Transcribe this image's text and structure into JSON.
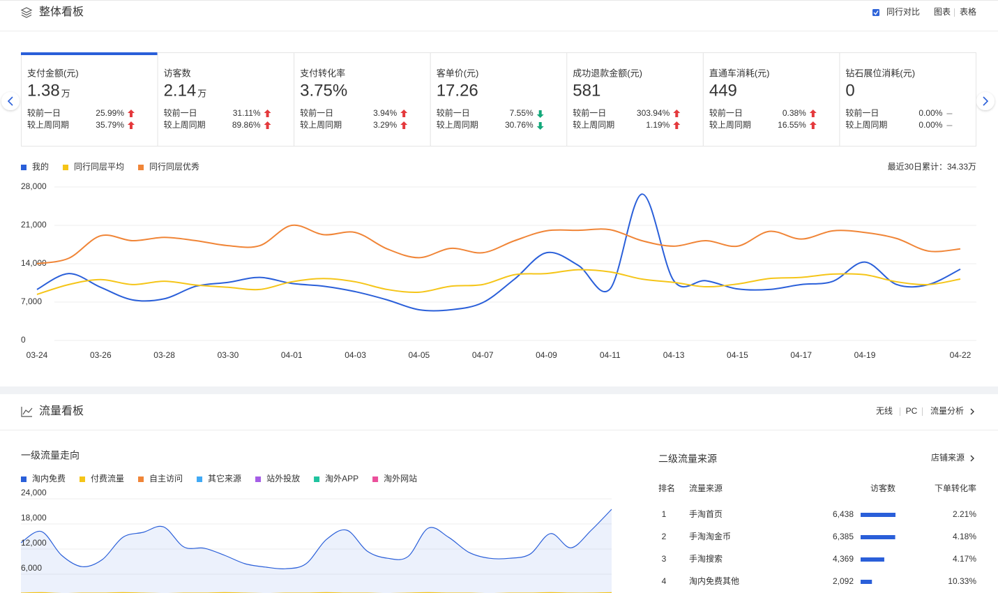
{
  "overview": {
    "title": "整体看板",
    "compare_toggle": {
      "label": "同行对比",
      "checked": true
    },
    "views": [
      "图表",
      "表格"
    ],
    "metrics": [
      {
        "title": "支付金额(元)",
        "value": "1.38",
        "unit": "万",
        "selected": true,
        "compare": [
          {
            "label": "较前一日",
            "value": "25.99%",
            "trend": "up",
            "color": "#666666"
          },
          {
            "label": "较上周同期",
            "value": "35.79%",
            "trend": "up",
            "color": "#e4393c"
          }
        ]
      },
      {
        "title": "访客数",
        "value": "2.14",
        "unit": "万",
        "selected": false,
        "compare": [
          {
            "label": "较前一日",
            "value": "31.11%",
            "trend": "up",
            "color": "#e4393c"
          },
          {
            "label": "较上周同期",
            "value": "89.86%",
            "trend": "up",
            "color": "#e4393c"
          }
        ]
      },
      {
        "title": "支付转化率",
        "value": "3.75%",
        "selected": false,
        "compare": [
          {
            "label": "较前一日",
            "value": "3.94%",
            "trend": "up",
            "color": "#666666"
          },
          {
            "label": "较上周同期",
            "value": "3.29%",
            "trend": "up",
            "color": "#666666"
          }
        ]
      },
      {
        "title": "客单价(元)",
        "value": "17.26",
        "selected": false,
        "compare": [
          {
            "label": "较前一日",
            "value": "7.55%",
            "trend": "down",
            "color": "#666666"
          },
          {
            "label": "较上周同期",
            "value": "30.76%",
            "trend": "down",
            "color": "#13a87a"
          }
        ]
      },
      {
        "title": "成功退款金额(元)",
        "value": "581",
        "selected": false,
        "compare": [
          {
            "label": "较前一日",
            "value": "303.94%",
            "trend": "up",
            "color": "#e4393c"
          },
          {
            "label": "较上周同期",
            "value": "1.19%",
            "trend": "up",
            "color": "#666666"
          }
        ]
      },
      {
        "title": "直通车消耗(元)",
        "value": "449",
        "selected": false,
        "compare": [
          {
            "label": "较前一日",
            "value": "0.38%",
            "trend": "up",
            "color": "#666666"
          },
          {
            "label": "较上周同期",
            "value": "16.55%",
            "trend": "up",
            "color": "#666666"
          }
        ]
      },
      {
        "title": "钻石展位消耗(元)",
        "value": "0",
        "selected": false,
        "compare": [
          {
            "label": "较前一日",
            "value": "0.00%",
            "trend": "flat",
            "color": "#666666"
          },
          {
            "label": "较上周同期",
            "value": "0.00%",
            "trend": "flat",
            "color": "#666666"
          }
        ]
      }
    ],
    "total": "最近30日累计：34.33万",
    "chart": {
      "type": "line",
      "categories": [
        "03-24",
        null,
        "03-26",
        null,
        "03-28",
        null,
        "03-30",
        null,
        "04-01",
        null,
        "04-03",
        null,
        "04-05",
        null,
        "04-07",
        null,
        "04-09",
        null,
        "04-11",
        null,
        "04-13",
        null,
        "04-15",
        null,
        "04-17",
        null,
        "04-19",
        null,
        null,
        "04-22"
      ],
      "ylim": [
        0,
        28000
      ],
      "yticks": [
        0,
        {
          "value": 7000,
          "label": "7,000"
        },
        {
          "value": 14000,
          "label": "14,000"
        },
        {
          "value": 21000,
          "label": "21,000"
        },
        {
          "value": 28000,
          "label": "28,000"
        }
      ],
      "grid": true,
      "series": [
        {
          "name": "我的",
          "color": "#2a5fd9",
          "values": [
            9300,
            12200,
            9700,
            7400,
            7600,
            9900,
            10600,
            11500,
            10400,
            9900,
            8900,
            7400,
            5600,
            5600,
            6900,
            11200,
            16000,
            13700,
            9400,
            26700,
            10900,
            10900,
            9400,
            9300,
            10200,
            10800,
            14300,
            10200,
            10200,
            13000
          ]
        },
        {
          "name": "同行同层平均",
          "color": "#f5c518",
          "values": [
            8400,
            10200,
            11100,
            10200,
            10800,
            10100,
            9700,
            9300,
            10700,
            11300,
            10700,
            9300,
            8800,
            9900,
            10200,
            12000,
            12200,
            12900,
            12500,
            11200,
            10600,
            9800,
            10300,
            11300,
            11500,
            12100,
            12000,
            10700,
            10200,
            11200
          ]
        },
        {
          "name": "同行同层优秀",
          "color": "#f08537",
          "values": [
            14000,
            15000,
            19100,
            18200,
            18800,
            18200,
            17300,
            17300,
            21000,
            19300,
            19700,
            16700,
            15100,
            16800,
            16000,
            18200,
            20000,
            20100,
            20200,
            18200,
            17200,
            18200,
            17200,
            19900,
            18500,
            20000,
            19700,
            18600,
            16300,
            16700
          ]
        }
      ]
    }
  },
  "traffic": {
    "title": "流量看板",
    "tabs": [
      "无线",
      "PC"
    ],
    "active_tab": 0,
    "link": "流量分析",
    "primary": {
      "title": "一级流量走向",
      "chart": {
        "type": "area",
        "ylim": [
          0,
          24000
        ],
        "yticks": [
          {
            "value": 6000,
            "label": "6,000"
          },
          {
            "value": 12000,
            "label": "12,000"
          },
          {
            "value": 18000,
            "label": "18,000"
          },
          {
            "value": 24000,
            "label": "24,000"
          }
        ],
        "grid": true,
        "series": [
          {
            "name": "淘内免费",
            "color": "#2a5fd9",
            "values": [
              13500,
              16200,
              10500,
              7800,
              9500,
              14800,
              16000,
              17300,
              12500,
              12200,
              10500,
              8500,
              7700,
              7300,
              8500,
              14300,
              16500,
              11500,
              9800,
              10200,
              17000,
              14800,
              11200,
              9800,
              9800,
              10800,
              15700,
              12300,
              16500,
              21500
            ]
          },
          {
            "name": "付费流量",
            "color": "#f5c518",
            "values": [
              1500,
              1600,
              1400,
              1500,
              1500,
              1600,
              1500,
              1400,
              1500,
              1500,
              1600,
              1500,
              1400,
              1500,
              1500,
              1600,
              1500,
              1500,
              1400,
              1500,
              1600,
              1500,
              1500,
              1400,
              1500,
              1500,
              1600,
              1500,
              1500,
              1600
            ]
          },
          {
            "name": "自主访问",
            "color": "#f08537"
          },
          {
            "name": "其它来源",
            "color": "#3fa9f5"
          },
          {
            "name": "站外投放",
            "color": "#a55de6"
          },
          {
            "name": "淘外APP",
            "color": "#1fc39f"
          },
          {
            "name": "淘外网站",
            "color": "#eb4f9b"
          }
        ]
      }
    },
    "secondary": {
      "title": "二级流量来源",
      "link": "店铺来源",
      "columns": [
        "排名",
        "流量来源",
        "访客数",
        "下单转化率"
      ],
      "bar_color": "#2a5fd9",
      "rows": [
        {
          "rank": 1,
          "source": "手淘首页",
          "visitors": 6438,
          "visitors_label": "6,438",
          "conversion": "2.21%"
        },
        {
          "rank": 2,
          "source": "手淘淘金币",
          "visitors": 6385,
          "visitors_label": "6,385",
          "conversion": "4.18%"
        },
        {
          "rank": 3,
          "source": "手淘搜索",
          "visitors": 4369,
          "visitors_label": "4,369",
          "conversion": "4.17%"
        },
        {
          "rank": 4,
          "source": "淘内免费其他",
          "visitors": 2092,
          "visitors_label": "2,092",
          "conversion": "10.33%"
        }
      ]
    }
  }
}
